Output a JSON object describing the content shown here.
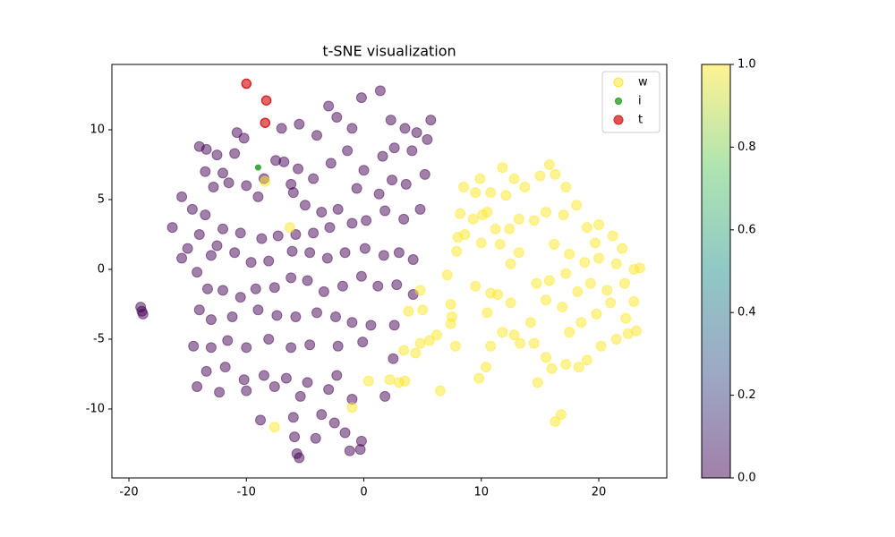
{
  "chart_data": {
    "type": "scatter",
    "title": "t-SNE visualization",
    "xlim": [
      -21.45,
      25.79
    ],
    "ylim": [
      -14.94,
      14.68
    ],
    "xticks": [
      -20,
      -10,
      0,
      10,
      20
    ],
    "yticks": [
      -10,
      -5,
      0,
      5,
      10
    ],
    "legend": "upper right",
    "colormap": "viridis",
    "alpha": 0.5,
    "clim": [
      0,
      1
    ],
    "cticks": [
      {
        "value": 0,
        "label": "0.0"
      },
      {
        "value": 0.2,
        "label": "0.2"
      },
      {
        "value": 0.4,
        "label": "0.4"
      },
      {
        "value": 0.6,
        "label": "0.6"
      },
      {
        "value": 0.8,
        "label": "0.8"
      },
      {
        "value": 1,
        "label": "1.0"
      }
    ],
    "series": [
      {
        "name": "w",
        "color": "#fde725",
        "x": [
          -19,
          -18.9,
          -18.8,
          -15.5,
          -16.3,
          -14.6,
          -15,
          -15.5,
          -14,
          -13.5,
          -14.2,
          -13,
          -12.5,
          -12,
          -12.8,
          -12,
          -13.5,
          -14,
          -13.4,
          -12.5,
          -11,
          -10.8,
          -10.2,
          -11.5,
          -10,
          -9,
          -8.5,
          -7.5,
          -6.8,
          -7,
          -5.5,
          -4,
          -3,
          -2.3,
          -1,
          -0.2,
          1.4,
          2.3,
          3.5,
          4.5,
          5.7,
          5.4,
          4.1,
          2.6,
          1.6,
          0,
          -1.4,
          -2.8,
          -4.3,
          -5.6,
          -6.2,
          -6,
          -5,
          -3.6,
          -2.2,
          -0.6,
          1.3,
          2.4,
          3.6,
          5.2,
          4.8,
          3.4,
          1.8,
          0.2,
          -1,
          -2.9,
          -4.3,
          -5.8,
          -7.3,
          -8.7,
          -10.5,
          -11,
          -9.6,
          -8.1,
          -6.1,
          -4.6,
          -3.1,
          -1.6,
          0.1,
          1.7,
          3,
          4.2,
          -13.3,
          -12,
          -10.5,
          -9.2,
          -7.6,
          -6.2,
          -4.8,
          -3.4,
          -1.8,
          -0.2,
          1.2,
          2.8,
          4.2,
          -14,
          -13,
          -11.2,
          -9,
          -7.4,
          -5.8,
          -4,
          -2.4,
          -1,
          0.6,
          2.6,
          -14.5,
          -13,
          -11.6,
          -10,
          -8.1,
          -6.2,
          -4.6,
          -2.2,
          -0.1,
          2.5,
          -13.4,
          -11.8,
          -10.2,
          -8.5,
          -6.6,
          -4.8,
          -2.3,
          -14.2,
          -12.3,
          -10,
          -7.6,
          -5.4,
          -3,
          -1,
          1.8,
          -8.8,
          -6,
          -3.6,
          -2.5,
          -1.6,
          -5.9,
          -4.1,
          -0.2,
          -1.2,
          -5.7,
          -5.5,
          -0.3,
          3,
          3.5,
          0.4,
          -1,
          -7.6,
          -6.3,
          -8.4,
          2.2,
          6.5,
          4.4,
          4.8,
          3.4,
          5.6,
          7.4,
          7.8,
          6.2,
          3.8,
          4.8,
          5,
          7.1,
          7.4,
          7.5,
          9.5,
          9.8,
          10.4,
          10.8,
          11.8,
          10.5,
          10.8,
          11.4,
          12.5,
          12.8,
          13.3,
          14.5,
          15.5,
          14.8,
          16,
          17.2,
          18.3,
          19,
          20.2,
          21.5,
          22.5,
          23.2,
          16.8,
          16.3,
          17.5,
          18.5,
          19.8,
          21,
          22.3,
          23,
          20.7,
          22.2,
          23,
          23.5,
          21.5,
          20,
          18.8,
          17.5,
          16.2,
          15.8,
          14.7,
          14.2,
          15.5,
          16.9,
          18.2,
          19.3,
          17.2,
          13.2,
          12.5,
          11.2,
          10.5,
          9.5,
          9.3,
          8.2,
          8,
          7.9,
          8.6,
          10.1,
          10.8,
          12.1,
          12.8,
          13.7,
          15,
          15.8,
          16.3,
          17.2,
          18.1,
          17,
          15.5,
          14.5,
          13.2,
          12.4,
          11.6,
          10,
          11.8,
          9.9,
          8.5,
          19,
          20,
          21.2,
          22,
          19.7
        ],
        "values": [
          -2.7,
          -3,
          -3.2,
          5.2,
          3,
          4.3,
          1.5,
          0.8,
          2.5,
          3.9,
          -0.2,
          1,
          1.7,
          2.9,
          5.9,
          6.9,
          7,
          8.8,
          8.6,
          8.2,
          8.3,
          9.8,
          9.4,
          6.2,
          6,
          5.2,
          6.5,
          7.8,
          7.7,
          10.1,
          10.4,
          9.6,
          11.7,
          10.9,
          10.1,
          12.3,
          12.8,
          10.7,
          10.1,
          9.8,
          10.7,
          9.3,
          8.5,
          8.7,
          8.1,
          7.1,
          8.5,
          7.6,
          6.5,
          7.2,
          6.1,
          5.5,
          4.6,
          4.1,
          4.3,
          5.8,
          5.4,
          6.4,
          6.1,
          6.8,
          4.3,
          3.6,
          4.2,
          3.5,
          3.3,
          3,
          2.6,
          2.5,
          2.4,
          2.2,
          2.6,
          1.2,
          0.5,
          0.6,
          1.3,
          1.2,
          0.8,
          1.2,
          1.5,
          1,
          1.2,
          0.7,
          -1.4,
          -1.5,
          -2,
          -1.4,
          -1.3,
          -0.6,
          -0.8,
          -1.6,
          -1.2,
          -0.5,
          -1.2,
          -1.1,
          -1.8,
          -2.9,
          -3.6,
          -3.4,
          -2.9,
          -3.3,
          -3.4,
          -3.1,
          -3.4,
          -3.8,
          -4,
          -4,
          -5.5,
          -5.6,
          -5.1,
          -5.6,
          -5,
          -5.6,
          -5.4,
          -5.5,
          -5.2,
          -6.4,
          -7.3,
          -7,
          -7.9,
          -7.6,
          -7.8,
          -8.1,
          -7.6,
          -8.4,
          -8.8,
          -8.7,
          -8.4,
          -9.1,
          -8.6,
          -9.3,
          -9.1,
          -10.8,
          -10.6,
          -10.4,
          -11,
          -11.7,
          -12,
          -12.1,
          -12.3,
          -13,
          -13.2,
          -13.5,
          -12.9,
          -8.1,
          -8,
          -8,
          -9.9,
          -11.3,
          3,
          6.3,
          -7.9,
          -8.7,
          -6,
          -5.3,
          -5.8,
          -5.1,
          -3.9,
          -5.5,
          -4.7,
          -3,
          -1.5,
          -2.9,
          -0.4,
          -2.5,
          -3.4,
          -1.2,
          -7.8,
          -7,
          -5.5,
          -4.5,
          -3.1,
          -1.7,
          -1.8,
          -2.4,
          -4.7,
          -5.3,
          -5.3,
          -6.3,
          -8.1,
          -7.1,
          -6.8,
          -7,
          -6.5,
          -5.5,
          -5,
          -4.6,
          -4.4,
          -10.4,
          -10.9,
          -4.5,
          -3.8,
          -3.2,
          -2.4,
          -3.5,
          -2.3,
          -1.5,
          -1,
          0,
          0.1,
          0.4,
          0.8,
          0.5,
          1.1,
          1.8,
          -0.8,
          -1,
          -3.8,
          -2.2,
          -2.7,
          -1.6,
          -1,
          -0.3,
          1.2,
          0.4,
          2.9,
          4.1,
          5.5,
          3.6,
          4,
          2.3,
          1.3,
          2.5,
          3.9,
          5.5,
          5.3,
          6.5,
          5.9,
          6.7,
          7.5,
          6.8,
          5.9,
          4.6,
          3.9,
          4.1,
          3.5,
          3.6,
          2.9,
          1.8,
          1.9,
          7.3,
          6.5,
          5.9,
          3,
          3.2,
          2.4,
          1.5,
          1.9
        ],
        "c": [
          0,
          0,
          0,
          0,
          0,
          0,
          0,
          0,
          0,
          0,
          0,
          0,
          0,
          0,
          0,
          0,
          0,
          0,
          0,
          0,
          0,
          0,
          0,
          0,
          0,
          0,
          0,
          0,
          0,
          0,
          0,
          0,
          0,
          0,
          0,
          0,
          0,
          0,
          0,
          0,
          0,
          0,
          0,
          0,
          0,
          0,
          0,
          0,
          0,
          0,
          0,
          0,
          0,
          0,
          0,
          0,
          0,
          0,
          0,
          0,
          0,
          0,
          0,
          0,
          0,
          0,
          0,
          0,
          0,
          0,
          0,
          0,
          0,
          0,
          0,
          0,
          0,
          0,
          0,
          0,
          0,
          0,
          0,
          0,
          0,
          0,
          0,
          0,
          0,
          0,
          0,
          0,
          0,
          0,
          0,
          0,
          0,
          0,
          0,
          0,
          0,
          0,
          0,
          0,
          0,
          0,
          0,
          0,
          0,
          0,
          0,
          0,
          0,
          0,
          0,
          0,
          0,
          0,
          0,
          0,
          0,
          0,
          0,
          0,
          0,
          0,
          0,
          0,
          0,
          0,
          0,
          0,
          0,
          0,
          0,
          0,
          0,
          0,
          0,
          0,
          0,
          0,
          0,
          1,
          1,
          1,
          1,
          1,
          1,
          1,
          1,
          1,
          1,
          1,
          1,
          1,
          1,
          1,
          1,
          1,
          1,
          1,
          1,
          1,
          1,
          1,
          1,
          1,
          1,
          1,
          1,
          1,
          1,
          1,
          1,
          1,
          1,
          1,
          1,
          1,
          1,
          1,
          1,
          1,
          1,
          1,
          1,
          1,
          1,
          1,
          1,
          1,
          1,
          1,
          1,
          1,
          1,
          1,
          1,
          1,
          1,
          1,
          1,
          1,
          1,
          1,
          1,
          1,
          1,
          1,
          1,
          1,
          1,
          1,
          1,
          1,
          1,
          1,
          1,
          1,
          1,
          1,
          1,
          1,
          1,
          1,
          1,
          1,
          1,
          1,
          1,
          1,
          1,
          1,
          1,
          1,
          1,
          1,
          1,
          1,
          1,
          1,
          1,
          1,
          1,
          1,
          1
        ]
      },
      {
        "name": "i",
        "color": "#2ca02c",
        "x": [
          -9
        ],
        "values": [
          7.3
        ]
      },
      {
        "name": "t",
        "color": "#d62728",
        "x": [
          -10,
          -8.3,
          -8.4
        ],
        "values": [
          13.3,
          12.1,
          10.5
        ]
      }
    ]
  }
}
